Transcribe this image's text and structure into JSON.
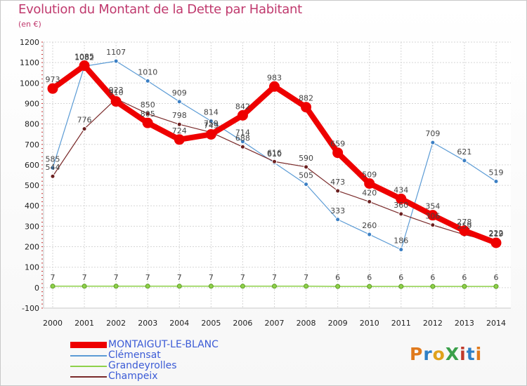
{
  "header": {
    "title": "Evolution du Montant de la Dette par Habitant",
    "subtitle": "(en €)"
  },
  "logo": {
    "text": "ProXiti",
    "colors": [
      "#e07a1c",
      "#2e7fc6",
      "#e0a21c",
      "#3aa04a",
      "#c0392b",
      "#2e7fc6",
      "#e07a1c"
    ]
  },
  "chart_data": {
    "type": "line",
    "title": "Evolution du Montant de la Dette par Habitant",
    "subtitle": "(en €)",
    "xlabel": "",
    "ylabel": "",
    "x": [
      2000,
      2001,
      2002,
      2003,
      2004,
      2005,
      2006,
      2007,
      2008,
      2009,
      2010,
      2011,
      2012,
      2013,
      2014
    ],
    "ylim": [
      -100,
      1200
    ],
    "yticks": [
      -100,
      0,
      100,
      200,
      300,
      400,
      500,
      600,
      700,
      800,
      900,
      1000,
      1100,
      1200
    ],
    "grid": true,
    "legend_position": "bottom-left",
    "series": [
      {
        "name": "Clémensat",
        "color": "#5b9bd5",
        "values": [
          585,
          1082,
          1107,
          1010,
          909,
          814,
          714,
          610,
          505,
          333,
          260,
          186,
          709,
          621,
          519
        ]
      },
      {
        "name": "Grandeyrolles",
        "color": "#8ed14a",
        "values": [
          7,
          7,
          7,
          7,
          7,
          7,
          7,
          7,
          7,
          6,
          6,
          6,
          6,
          6,
          6
        ]
      },
      {
        "name": "Champeix",
        "color": "#7a2a2a",
        "values": [
          544,
          776,
          923,
          850,
          798,
          759,
          688,
          616,
          590,
          473,
          420,
          360,
          306,
          259,
          222
        ]
      },
      {
        "name": "MONTAIGUT-LE-BLANC",
        "color": "#ee0000",
        "values": [
          973,
          1085,
          910,
          805,
          724,
          749,
          842,
          983,
          882,
          659,
          509,
          434,
          354,
          278,
          219
        ]
      }
    ]
  }
}
